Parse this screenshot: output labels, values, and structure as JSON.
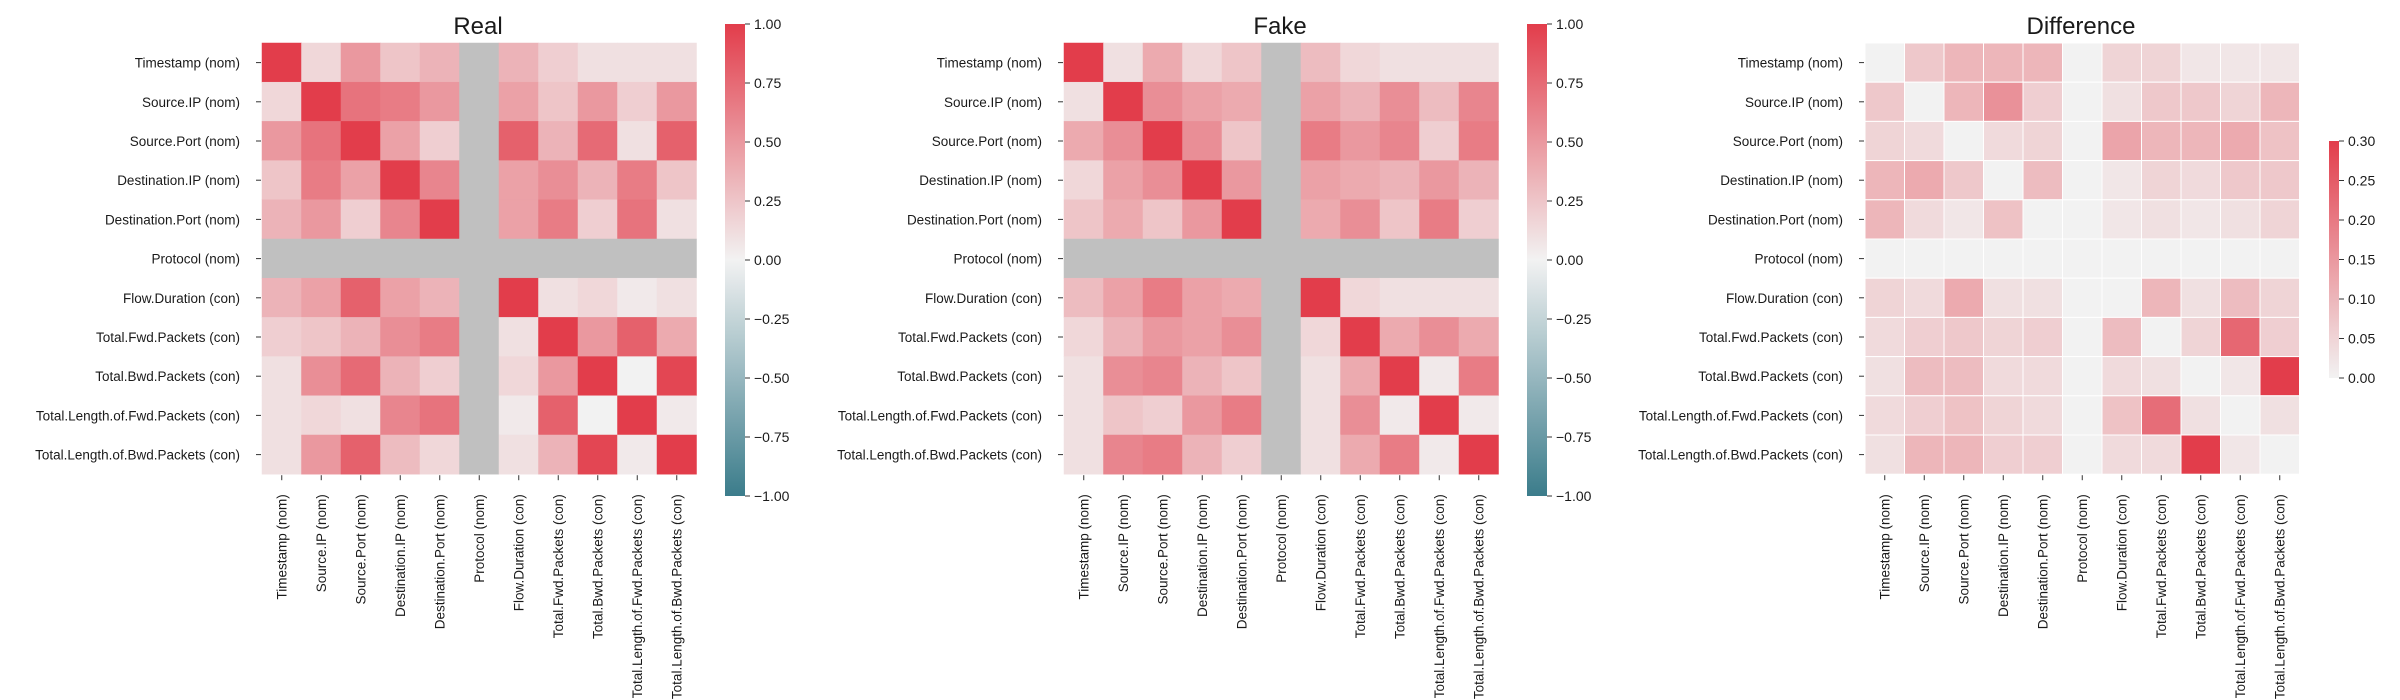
{
  "chart_data": [
    {
      "type": "heatmap",
      "title": "Real",
      "labels": [
        "Timestamp (nom)",
        "Source.IP (nom)",
        "Source.Port (nom)",
        "Destination.IP (nom)",
        "Destination.Port (nom)",
        "Protocol (nom)",
        "Flow.Duration (con)",
        "Total.Fwd.Packets (con)",
        "Total.Bwd.Packets (con)",
        "Total.Length.of.Fwd.Packets (con)",
        "Total.Length.of.Bwd.Packets (con)"
      ],
      "values": [
        [
          1.0,
          0.15,
          0.5,
          0.25,
          0.35,
          null,
          0.35,
          0.2,
          0.1,
          0.1,
          0.1
        ],
        [
          0.15,
          1.0,
          0.7,
          0.65,
          0.5,
          null,
          0.45,
          0.25,
          0.5,
          0.2,
          0.5
        ],
        [
          0.5,
          0.7,
          1.0,
          0.45,
          0.2,
          null,
          0.8,
          0.35,
          0.75,
          0.1,
          0.8
        ],
        [
          0.25,
          0.65,
          0.45,
          1.0,
          0.6,
          null,
          0.45,
          0.55,
          0.35,
          0.65,
          0.25
        ],
        [
          0.35,
          0.5,
          0.2,
          0.6,
          1.0,
          null,
          0.45,
          0.65,
          0.2,
          0.7,
          0.1
        ],
        [
          null,
          null,
          null,
          null,
          null,
          null,
          null,
          null,
          null,
          null,
          null
        ],
        [
          0.35,
          0.45,
          0.8,
          0.45,
          0.35,
          null,
          1.0,
          0.1,
          0.15,
          0.05,
          0.1
        ],
        [
          0.2,
          0.25,
          0.35,
          0.55,
          0.65,
          null,
          0.1,
          1.0,
          0.5,
          0.8,
          0.4
        ],
        [
          0.1,
          0.55,
          0.75,
          0.35,
          0.2,
          null,
          0.15,
          0.5,
          1.0,
          0.0,
          0.95
        ],
        [
          0.1,
          0.15,
          0.1,
          0.6,
          0.7,
          null,
          0.05,
          0.8,
          0.0,
          1.0,
          0.05
        ],
        [
          0.1,
          0.5,
          0.8,
          0.3,
          0.15,
          null,
          0.1,
          0.35,
          0.95,
          0.05,
          1.0
        ]
      ],
      "vmin": -1.0,
      "vmax": 1.0,
      "colorbar_ticks": [
        "1.00",
        "0.75",
        "0.50",
        "0.25",
        "0.00",
        "−0.25",
        "−0.50",
        "−0.75",
        "−1.00"
      ],
      "colorbar_tick_values": [
        1.0,
        0.75,
        0.5,
        0.25,
        0.0,
        -0.25,
        -0.5,
        -0.75,
        -1.0
      ],
      "missing_color": "#c0c0c0"
    },
    {
      "type": "heatmap",
      "title": "Fake",
      "labels": [
        "Timestamp (nom)",
        "Source.IP (nom)",
        "Source.Port (nom)",
        "Destination.IP (nom)",
        "Destination.Port (nom)",
        "Protocol (nom)",
        "Flow.Duration (con)",
        "Total.Fwd.Packets (con)",
        "Total.Bwd.Packets (con)",
        "Total.Length.of.Fwd.Packets (con)",
        "Total.Length.of.Bwd.Packets (con)"
      ],
      "values": [
        [
          1.0,
          0.1,
          0.4,
          0.15,
          0.25,
          null,
          0.3,
          0.15,
          0.1,
          0.1,
          0.1
        ],
        [
          0.1,
          1.0,
          0.55,
          0.45,
          0.4,
          null,
          0.45,
          0.35,
          0.55,
          0.3,
          0.6
        ],
        [
          0.4,
          0.55,
          1.0,
          0.55,
          0.25,
          null,
          0.65,
          0.5,
          0.6,
          0.2,
          0.65
        ],
        [
          0.15,
          0.45,
          0.55,
          1.0,
          0.5,
          null,
          0.45,
          0.4,
          0.35,
          0.5,
          0.35
        ],
        [
          0.25,
          0.4,
          0.25,
          0.5,
          1.0,
          null,
          0.4,
          0.55,
          0.25,
          0.65,
          0.2
        ],
        [
          null,
          null,
          null,
          null,
          null,
          null,
          null,
          null,
          null,
          null,
          null
        ],
        [
          0.3,
          0.45,
          0.65,
          0.45,
          0.4,
          null,
          1.0,
          0.15,
          0.1,
          0.1,
          0.1
        ],
        [
          0.15,
          0.35,
          0.5,
          0.45,
          0.55,
          null,
          0.15,
          1.0,
          0.4,
          0.55,
          0.4
        ],
        [
          0.1,
          0.55,
          0.6,
          0.35,
          0.25,
          null,
          0.1,
          0.4,
          1.0,
          0.05,
          0.65
        ],
        [
          0.1,
          0.25,
          0.2,
          0.5,
          0.65,
          null,
          0.1,
          0.55,
          0.05,
          1.0,
          0.05
        ],
        [
          0.1,
          0.6,
          0.65,
          0.35,
          0.2,
          null,
          0.1,
          0.4,
          0.65,
          0.05,
          1.0
        ]
      ],
      "vmin": -1.0,
      "vmax": 1.0,
      "colorbar_ticks": [
        "1.00",
        "0.75",
        "0.50",
        "0.25",
        "0.00",
        "−0.25",
        "−0.50",
        "−0.75",
        "−1.00"
      ],
      "colorbar_tick_values": [
        1.0,
        0.75,
        0.5,
        0.25,
        0.0,
        -0.25,
        -0.5,
        -0.75,
        -1.0
      ],
      "missing_color": "#c0c0c0"
    },
    {
      "type": "heatmap",
      "title": "Difference",
      "labels": [
        "Timestamp (nom)",
        "Source.IP (nom)",
        "Source.Port (nom)",
        "Destination.IP (nom)",
        "Destination.Port (nom)",
        "Protocol (nom)",
        "Flow.Duration (con)",
        "Total.Fwd.Packets (con)",
        "Total.Bwd.Packets (con)",
        "Total.Length.of.Fwd.Packets (con)",
        "Total.Length.of.Bwd.Packets (con)"
      ],
      "values": [
        [
          0.0,
          0.07,
          0.1,
          0.1,
          0.1,
          0.0,
          0.05,
          0.05,
          0.02,
          0.02,
          0.02
        ],
        [
          0.07,
          0.0,
          0.1,
          0.16,
          0.06,
          0.0,
          0.03,
          0.07,
          0.07,
          0.05,
          0.1
        ],
        [
          0.05,
          0.04,
          0.0,
          0.04,
          0.05,
          0.0,
          0.13,
          0.1,
          0.1,
          0.12,
          0.08
        ],
        [
          0.1,
          0.12,
          0.07,
          0.0,
          0.09,
          0.0,
          0.02,
          0.05,
          0.04,
          0.07,
          0.07
        ],
        [
          0.1,
          0.04,
          0.02,
          0.08,
          0.0,
          0.0,
          0.02,
          0.03,
          0.02,
          0.03,
          0.05
        ],
        [
          0.0,
          0.0,
          0.0,
          0.0,
          0.0,
          0.0,
          0.0,
          0.0,
          0.0,
          0.0,
          0.0
        ],
        [
          0.05,
          0.04,
          0.12,
          0.03,
          0.03,
          0.0,
          0.0,
          0.1,
          0.03,
          0.09,
          0.05
        ],
        [
          0.04,
          0.06,
          0.07,
          0.05,
          0.06,
          0.0,
          0.09,
          0.0,
          0.05,
          0.23,
          0.06
        ],
        [
          0.03,
          0.09,
          0.09,
          0.04,
          0.04,
          0.0,
          0.04,
          0.03,
          0.0,
          0.02,
          0.3
        ],
        [
          0.04,
          0.06,
          0.08,
          0.05,
          0.04,
          0.0,
          0.08,
          0.22,
          0.03,
          0.0,
          0.03
        ],
        [
          0.03,
          0.1,
          0.1,
          0.06,
          0.06,
          0.0,
          0.04,
          0.04,
          0.3,
          0.02,
          0.0
        ]
      ],
      "vmin": 0.0,
      "vmax": 0.3,
      "colorbar_ticks": [
        "0.30",
        "0.25",
        "0.20",
        "0.15",
        "0.10",
        "0.05",
        "0.00"
      ],
      "colorbar_tick_values": [
        0.3,
        0.25,
        0.2,
        0.15,
        0.1,
        0.05,
        0.0
      ]
    }
  ],
  "colors": {
    "neg": "#3b7c8b",
    "mid": "#f2f2f2",
    "pos": "#e23d4b",
    "seq_low": "#f2f2f2",
    "seq_high": "#e23d4b",
    "text": "#1a1a1a"
  }
}
